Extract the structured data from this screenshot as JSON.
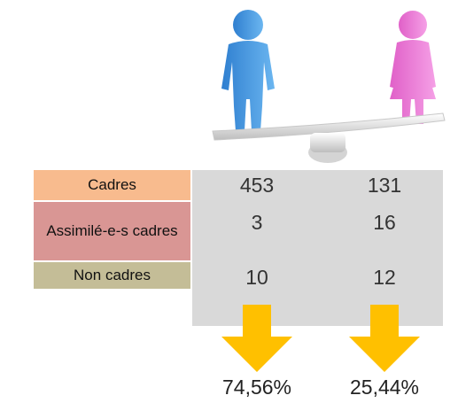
{
  "table": {
    "rows": [
      [
        "Cadres",
        "453",
        "131"
      ],
      [
        "Assimilé-e-s cadres",
        "3",
        "16"
      ],
      [
        "Non cadres",
        "10",
        "12"
      ]
    ]
  },
  "percentages": [
    "74,56%",
    "25,44%"
  ]
}
